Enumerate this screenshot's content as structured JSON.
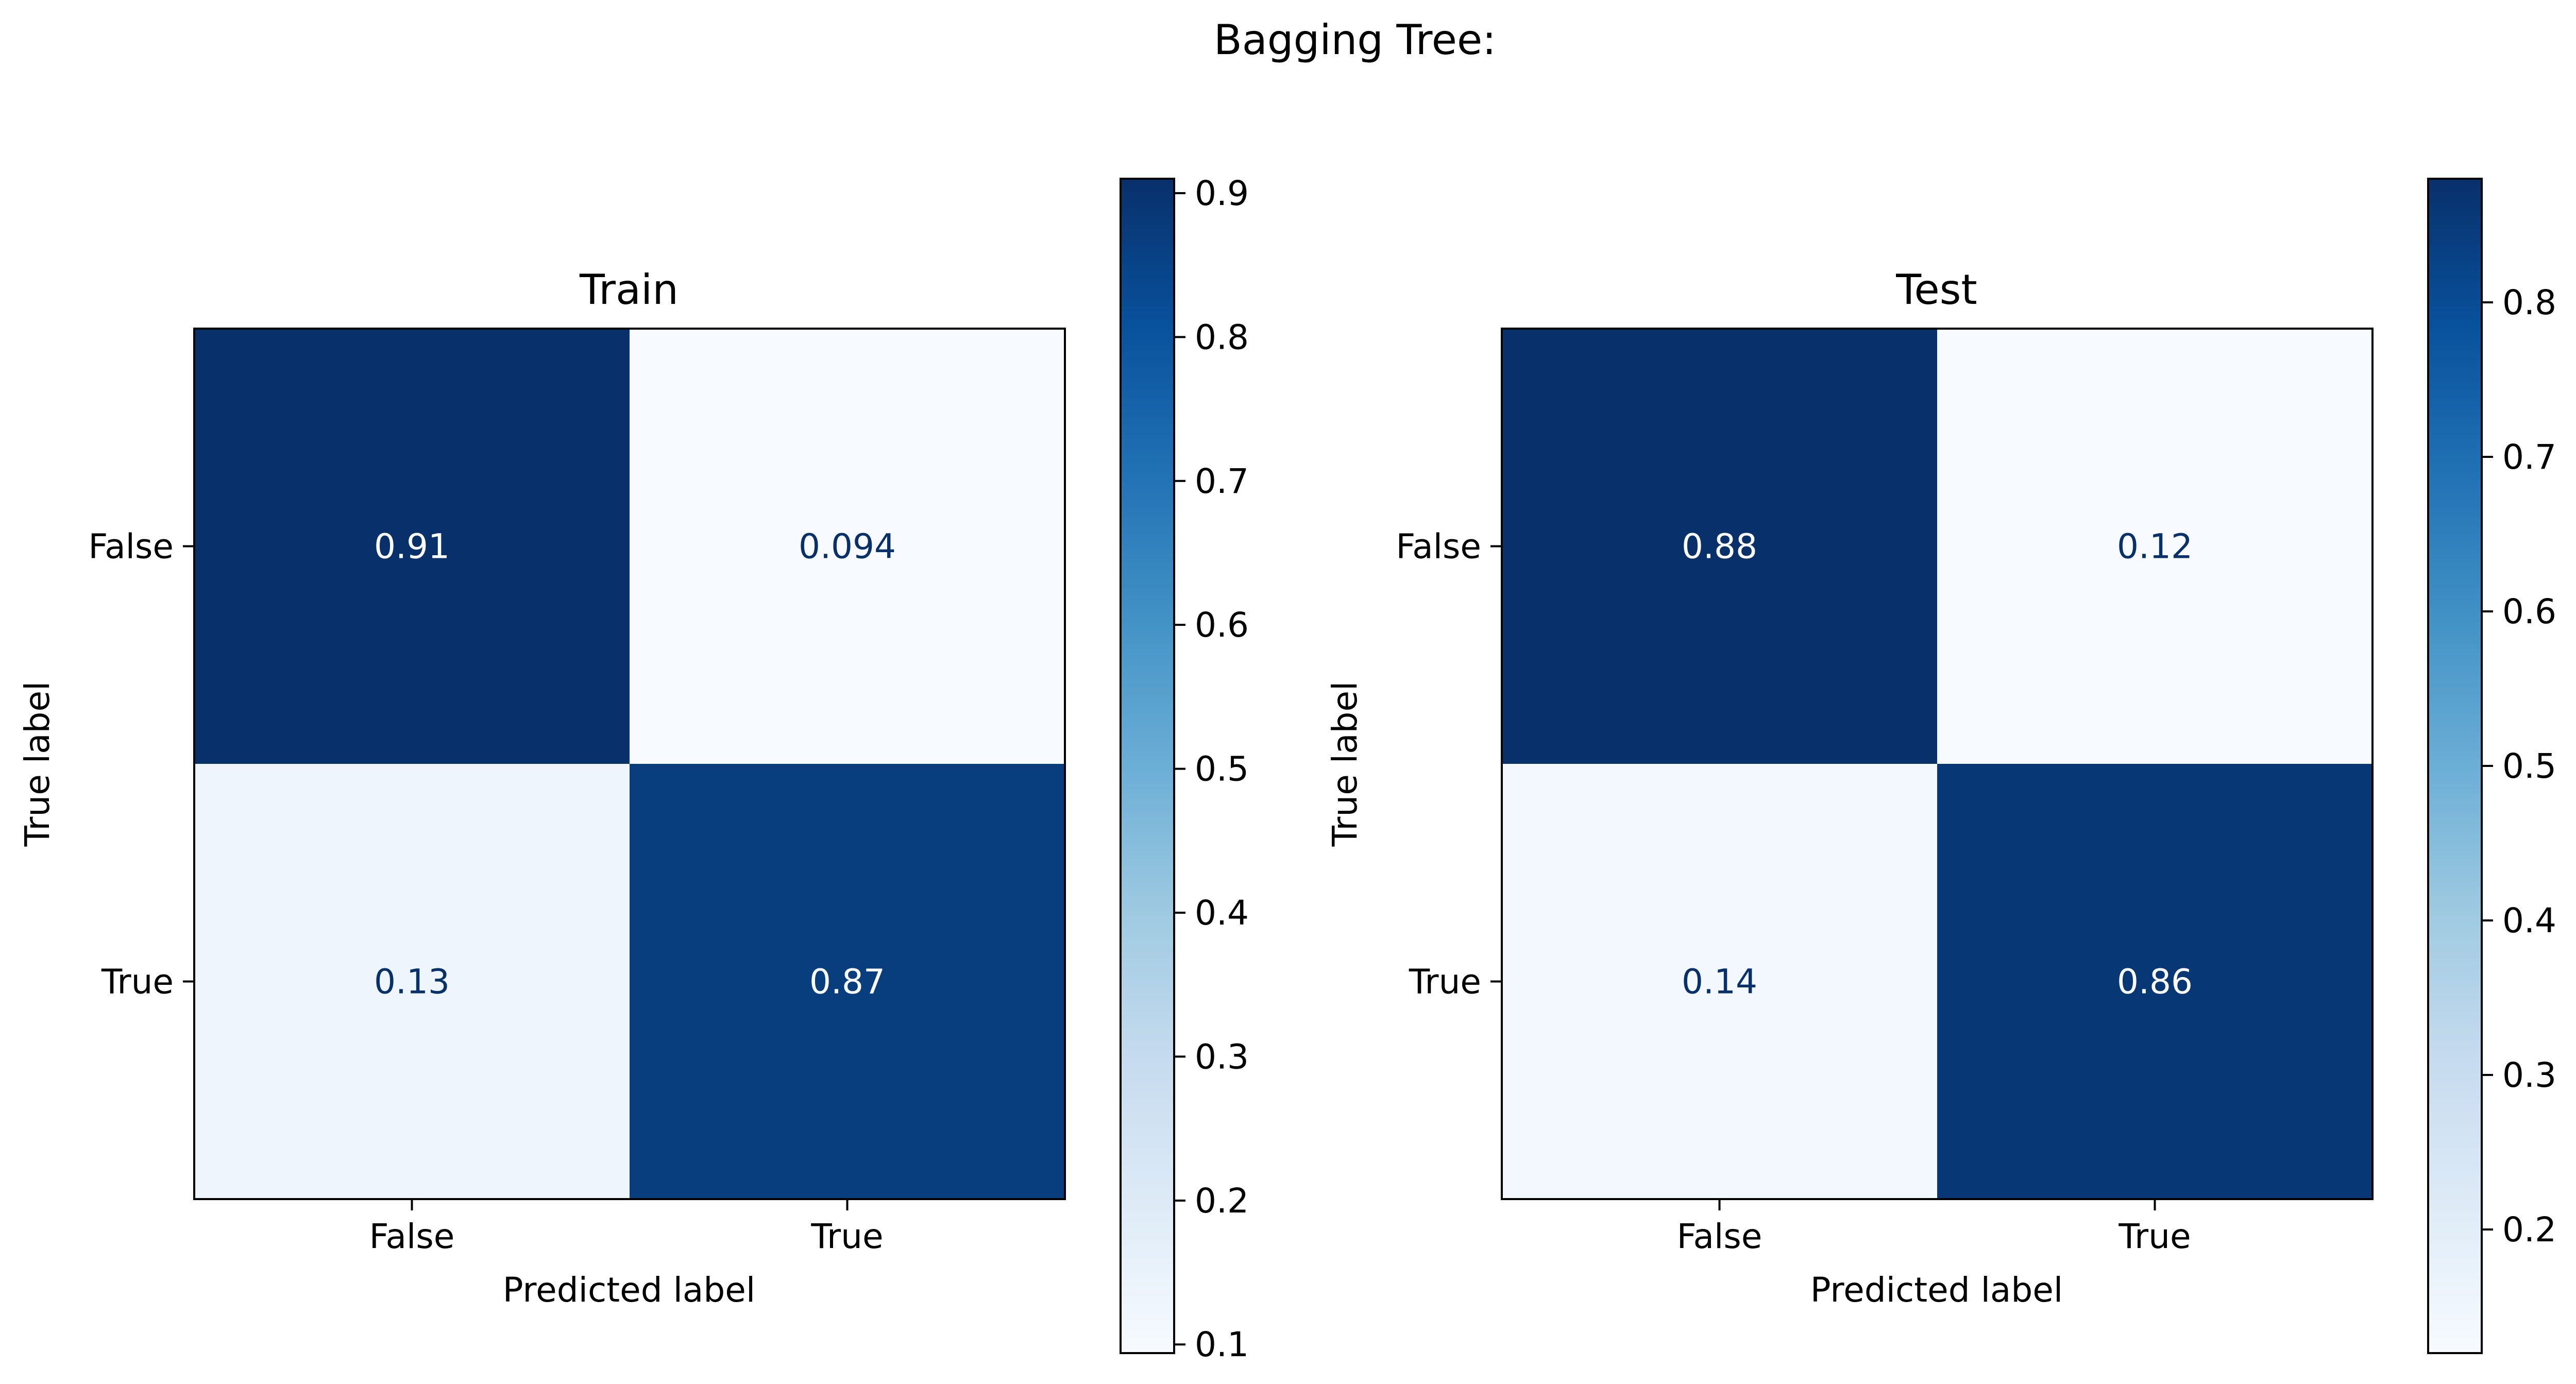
{
  "figure": {
    "title": "Bagging Tree:"
  },
  "chart_data": [
    {
      "type": "heatmap",
      "title": "Train",
      "xlabel": "Predicted label",
      "ylabel": "True label",
      "x_categories": [
        "False",
        "True"
      ],
      "y_categories": [
        "False",
        "True"
      ],
      "values": [
        [
          0.91,
          0.094
        ],
        [
          0.13,
          0.87
        ]
      ],
      "value_labels": [
        [
          "0.91",
          "0.094"
        ],
        [
          "0.13",
          "0.87"
        ]
      ],
      "colormap": "Blues",
      "grid": false,
      "colorbar": {
        "range": [
          0.094,
          0.91
        ],
        "ticks": [
          0.1,
          0.2,
          0.3,
          0.4,
          0.5,
          0.6,
          0.7,
          0.8,
          0.9
        ],
        "tick_labels": [
          "0.1",
          "0.2",
          "0.3",
          "0.4",
          "0.5",
          "0.6",
          "0.7",
          "0.8",
          "0.9"
        ]
      }
    },
    {
      "type": "heatmap",
      "title": "Test",
      "xlabel": "Predicted label",
      "ylabel": "True label",
      "x_categories": [
        "False",
        "True"
      ],
      "y_categories": [
        "False",
        "True"
      ],
      "values": [
        [
          0.88,
          0.12
        ],
        [
          0.14,
          0.86
        ]
      ],
      "value_labels": [
        [
          "0.88",
          "0.12"
        ],
        [
          "0.14",
          "0.86"
        ]
      ],
      "colormap": "Blues",
      "grid": false,
      "colorbar": {
        "range": [
          0.12,
          0.88
        ],
        "ticks": [
          0.2,
          0.3,
          0.4,
          0.5,
          0.6,
          0.7,
          0.8
        ],
        "tick_labels": [
          "0.2",
          "0.3",
          "0.4",
          "0.5",
          "0.6",
          "0.7",
          "0.8"
        ]
      }
    }
  ]
}
